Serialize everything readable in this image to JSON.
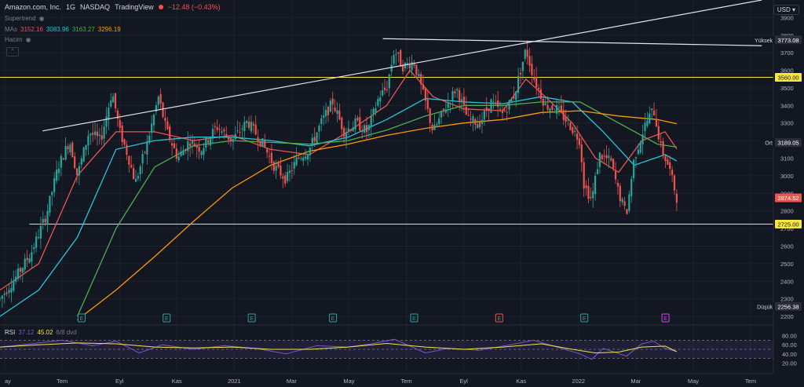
{
  "header": {
    "symbol": "Amazon.com, Inc.",
    "interval": "1G",
    "exchange": "NASDAQ",
    "source": "TradingView",
    "change": "−12.48 (−0.43%)"
  },
  "indicators": {
    "supertrend": "Supertrend",
    "mas_label": "MAs",
    "ma_values": [
      "3152.16",
      "3083.96",
      "3163.27",
      "3296.19"
    ],
    "ma_colors": [
      "#ef5350",
      "#26c6da",
      "#4caf50",
      "#ff9800"
    ],
    "hacim": "Hacim",
    "collapse": "^"
  },
  "currency": "USD",
  "price_axis": {
    "ticks": [
      3900,
      3800,
      3700,
      3600,
      3500,
      3400,
      3300,
      3200,
      3100,
      3000,
      2900,
      2800,
      2700,
      2600,
      2500,
      2400,
      2300,
      2200
    ],
    "labels": [
      {
        "text": "Yüksek",
        "value": "3773.08",
        "price": 3773.08,
        "color": "#ffffff",
        "bg": "#2a2e39"
      },
      {
        "text": "",
        "value": "3560.00",
        "price": 3560,
        "color": "#131722",
        "bg": "#f5e642"
      },
      {
        "text": "Ort",
        "value": "3189.05",
        "price": 3189.05,
        "color": "#ffffff",
        "bg": "#2a2e39"
      },
      {
        "text": "",
        "value": "2874.52",
        "price": 2874.52,
        "color": "#ffffff",
        "bg": "#ef5350"
      },
      {
        "text": "",
        "value": "2725.00",
        "price": 2725,
        "color": "#131722",
        "bg": "#f5e642"
      },
      {
        "text": "Düşük",
        "value": "2256.38",
        "price": 2256.38,
        "color": "#ffffff",
        "bg": "#2a2e39"
      }
    ]
  },
  "time_axis": [
    "ay",
    "Tem",
    "Eyl",
    "Kas",
    "2021",
    "Mar",
    "May",
    "Tem",
    "Eyl",
    "Kas",
    "2022",
    "Mar",
    "May",
    "Tem"
  ],
  "earnings_markers": [
    "E",
    "E",
    "E",
    "E",
    "E",
    "E",
    "E",
    "E"
  ],
  "rsi": {
    "label": "RSI",
    "value1": "37.12",
    "value2": "45.02",
    "extra": "6/8 dvd",
    "ticks": [
      80,
      60,
      40,
      20
    ]
  },
  "chart_data": {
    "type": "line",
    "title": "Amazon.com, Inc. · 1G · NASDAQ",
    "xlabel": "",
    "ylabel": "",
    "ylim": [
      2160,
      4000
    ],
    "x_labels": [
      "ay",
      "Tem",
      "Eyl",
      "Kas",
      "2021",
      "Mar",
      "May",
      "Tem",
      "Eyl",
      "Kas",
      "2022",
      "Mar",
      "May",
      "Tem"
    ],
    "horizontal_levels": [
      3560,
      2725
    ],
    "trendlines": [
      {
        "from": [
          0.055,
          3255
        ],
        "to": [
          0.985,
          4000
        ]
      },
      {
        "from": [
          0.495,
          3780
        ],
        "to": [
          0.985,
          3740
        ]
      }
    ],
    "price_path": [
      [
        0.0,
        2300
      ],
      [
        0.02,
        2420
      ],
      [
        0.04,
        2560
      ],
      [
        0.06,
        2780
      ],
      [
        0.075,
        3050
      ],
      [
        0.09,
        3200
      ],
      [
        0.1,
        3000
      ],
      [
        0.115,
        3250
      ],
      [
        0.13,
        3200
      ],
      [
        0.145,
        3480
      ],
      [
        0.155,
        3250
      ],
      [
        0.165,
        3120
      ],
      [
        0.175,
        2960
      ],
      [
        0.19,
        3180
      ],
      [
        0.205,
        3450
      ],
      [
        0.215,
        3260
      ],
      [
        0.23,
        3100
      ],
      [
        0.245,
        3200
      ],
      [
        0.26,
        3150
      ],
      [
        0.28,
        3280
      ],
      [
        0.3,
        3200
      ],
      [
        0.32,
        3310
      ],
      [
        0.34,
        3180
      ],
      [
        0.355,
        3050
      ],
      [
        0.37,
        2980
      ],
      [
        0.385,
        3100
      ],
      [
        0.4,
        3150
      ],
      [
        0.415,
        3300
      ],
      [
        0.43,
        3420
      ],
      [
        0.445,
        3250
      ],
      [
        0.46,
        3300
      ],
      [
        0.475,
        3250
      ],
      [
        0.49,
        3450
      ],
      [
        0.5,
        3500
      ],
      [
        0.51,
        3720
      ],
      [
        0.52,
        3620
      ],
      [
        0.535,
        3650
      ],
      [
        0.55,
        3420
      ],
      [
        0.56,
        3250
      ],
      [
        0.575,
        3380
      ],
      [
        0.59,
        3500
      ],
      [
        0.605,
        3320
      ],
      [
        0.62,
        3300
      ],
      [
        0.635,
        3420
      ],
      [
        0.65,
        3350
      ],
      [
        0.665,
        3460
      ],
      [
        0.68,
        3720
      ],
      [
        0.69,
        3560
      ],
      [
        0.705,
        3400
      ],
      [
        0.72,
        3380
      ],
      [
        0.735,
        3300
      ],
      [
        0.75,
        3200
      ],
      [
        0.755,
        2950
      ],
      [
        0.765,
        2860
      ],
      [
        0.775,
        3120
      ],
      [
        0.79,
        3080
      ],
      [
        0.8,
        2900
      ],
      [
        0.81,
        2780
      ],
      [
        0.82,
        3100
      ],
      [
        0.835,
        3300
      ],
      [
        0.845,
        3380
      ],
      [
        0.855,
        3150
      ],
      [
        0.865,
        3050
      ],
      [
        0.875,
        2874.52
      ]
    ],
    "series": [
      {
        "name": "MA 3152.16",
        "color": "#ef5350",
        "values": [
          [
            0.0,
            2350
          ],
          [
            0.05,
            2500
          ],
          [
            0.1,
            3000
          ],
          [
            0.15,
            3250
          ],
          [
            0.2,
            3250
          ],
          [
            0.25,
            3200
          ],
          [
            0.3,
            3230
          ],
          [
            0.35,
            3150
          ],
          [
            0.4,
            3120
          ],
          [
            0.45,
            3250
          ],
          [
            0.5,
            3400
          ],
          [
            0.53,
            3600
          ],
          [
            0.56,
            3450
          ],
          [
            0.6,
            3380
          ],
          [
            0.65,
            3370
          ],
          [
            0.68,
            3550
          ],
          [
            0.71,
            3430
          ],
          [
            0.74,
            3300
          ],
          [
            0.77,
            3100
          ],
          [
            0.8,
            3020
          ],
          [
            0.83,
            3200
          ],
          [
            0.86,
            3250
          ],
          [
            0.875,
            3152.16
          ]
        ]
      },
      {
        "name": "MA 3083.96",
        "color": "#26c6da",
        "values": [
          [
            0.0,
            2200
          ],
          [
            0.05,
            2350
          ],
          [
            0.1,
            2650
          ],
          [
            0.15,
            3150
          ],
          [
            0.2,
            3200
          ],
          [
            0.25,
            3220
          ],
          [
            0.3,
            3220
          ],
          [
            0.35,
            3200
          ],
          [
            0.4,
            3170
          ],
          [
            0.45,
            3220
          ],
          [
            0.5,
            3320
          ],
          [
            0.55,
            3440
          ],
          [
            0.6,
            3420
          ],
          [
            0.65,
            3410
          ],
          [
            0.7,
            3450
          ],
          [
            0.74,
            3420
          ],
          [
            0.78,
            3250
          ],
          [
            0.82,
            3060
          ],
          [
            0.86,
            3120
          ],
          [
            0.875,
            3083.96
          ]
        ]
      },
      {
        "name": "MA 3163.27",
        "color": "#4caf50",
        "values": [
          [
            0.1,
            2200
          ],
          [
            0.15,
            2700
          ],
          [
            0.2,
            3050
          ],
          [
            0.25,
            3170
          ],
          [
            0.3,
            3200
          ],
          [
            0.35,
            3190
          ],
          [
            0.4,
            3180
          ],
          [
            0.45,
            3200
          ],
          [
            0.5,
            3260
          ],
          [
            0.55,
            3340
          ],
          [
            0.6,
            3400
          ],
          [
            0.65,
            3400
          ],
          [
            0.7,
            3420
          ],
          [
            0.75,
            3420
          ],
          [
            0.8,
            3300
          ],
          [
            0.85,
            3180
          ],
          [
            0.875,
            3163.27
          ]
        ]
      },
      {
        "name": "MA 3296.19",
        "color": "#ff9800",
        "values": [
          [
            0.1,
            2180
          ],
          [
            0.15,
            2350
          ],
          [
            0.2,
            2540
          ],
          [
            0.25,
            2740
          ],
          [
            0.3,
            2930
          ],
          [
            0.35,
            3060
          ],
          [
            0.4,
            3140
          ],
          [
            0.45,
            3180
          ],
          [
            0.5,
            3230
          ],
          [
            0.55,
            3270
          ],
          [
            0.6,
            3300
          ],
          [
            0.65,
            3320
          ],
          [
            0.7,
            3360
          ],
          [
            0.75,
            3370
          ],
          [
            0.8,
            3340
          ],
          [
            0.85,
            3320
          ],
          [
            0.875,
            3296.19
          ]
        ]
      }
    ],
    "rsi_path": [
      [
        0.0,
        55
      ],
      [
        0.04,
        62
      ],
      [
        0.08,
        70
      ],
      [
        0.12,
        58
      ],
      [
        0.15,
        68
      ],
      [
        0.18,
        42
      ],
      [
        0.21,
        60
      ],
      [
        0.25,
        50
      ],
      [
        0.29,
        58
      ],
      [
        0.33,
        52
      ],
      [
        0.37,
        40
      ],
      [
        0.41,
        58
      ],
      [
        0.45,
        55
      ],
      [
        0.48,
        62
      ],
      [
        0.51,
        72
      ],
      [
        0.55,
        42
      ],
      [
        0.58,
        52
      ],
      [
        0.62,
        48
      ],
      [
        0.66,
        60
      ],
      [
        0.69,
        70
      ],
      [
        0.72,
        55
      ],
      [
        0.75,
        40
      ],
      [
        0.765,
        28
      ],
      [
        0.78,
        52
      ],
      [
        0.81,
        35
      ],
      [
        0.83,
        62
      ],
      [
        0.845,
        68
      ],
      [
        0.86,
        52
      ],
      [
        0.875,
        45
      ]
    ],
    "rsi_signal": [
      [
        0.0,
        55
      ],
      [
        0.05,
        60
      ],
      [
        0.1,
        64
      ],
      [
        0.15,
        62
      ],
      [
        0.2,
        55
      ],
      [
        0.25,
        53
      ],
      [
        0.3,
        55
      ],
      [
        0.35,
        50
      ],
      [
        0.4,
        50
      ],
      [
        0.45,
        55
      ],
      [
        0.5,
        63
      ],
      [
        0.55,
        55
      ],
      [
        0.6,
        50
      ],
      [
        0.65,
        55
      ],
      [
        0.7,
        62
      ],
      [
        0.74,
        50
      ],
      [
        0.77,
        42
      ],
      [
        0.8,
        44
      ],
      [
        0.83,
        55
      ],
      [
        0.86,
        57
      ],
      [
        0.875,
        45.02
      ]
    ]
  }
}
